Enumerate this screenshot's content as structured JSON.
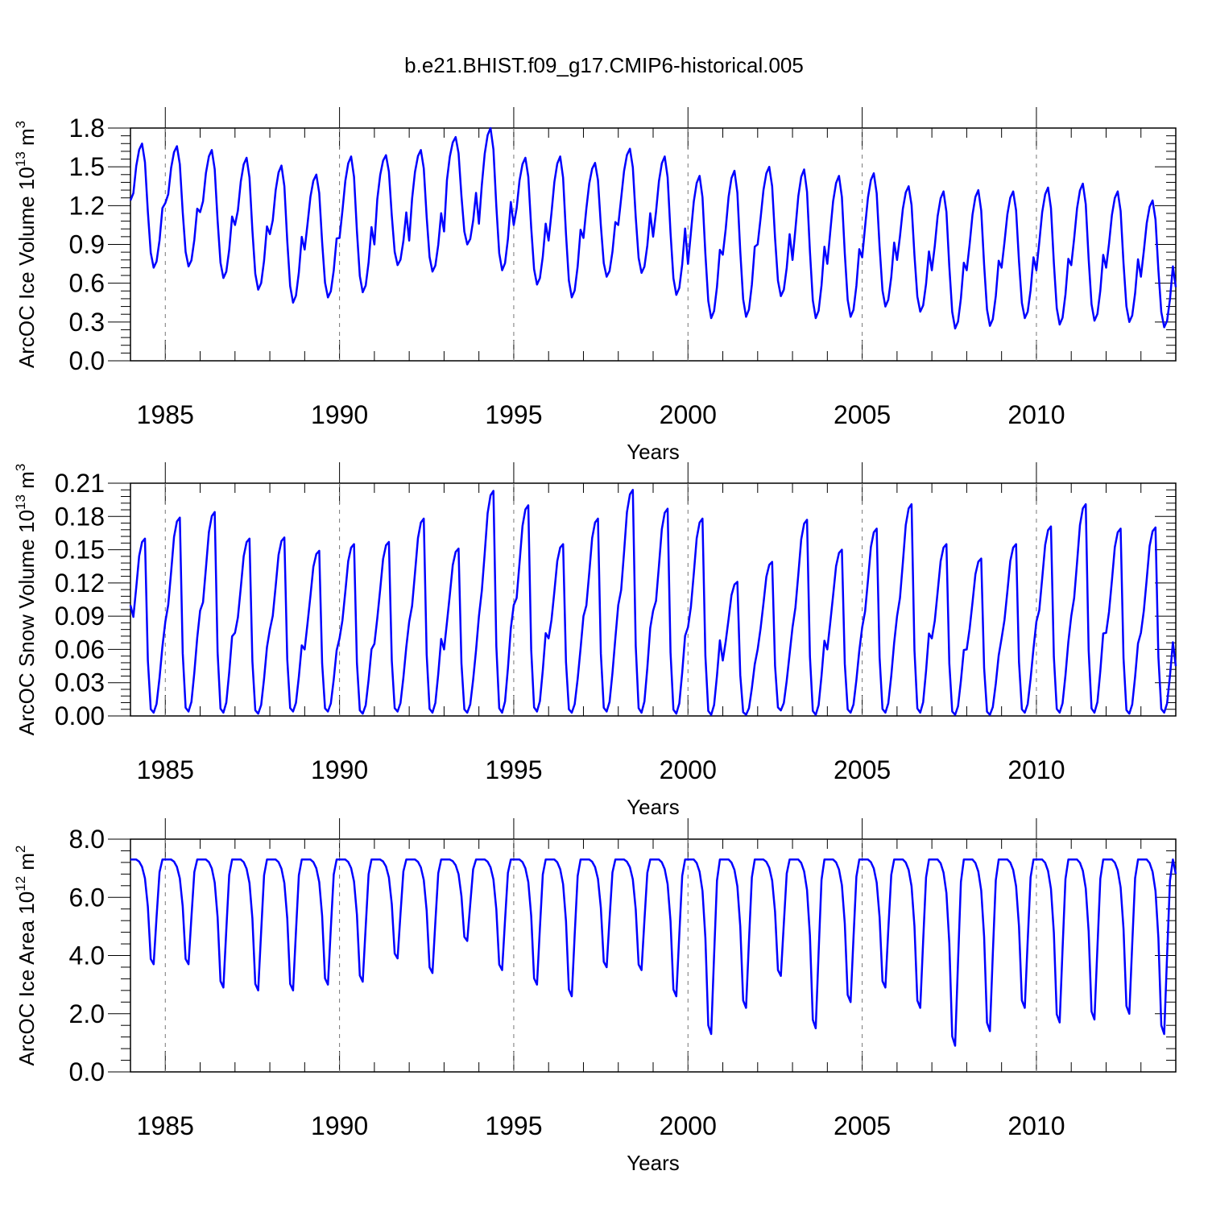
{
  "figure": {
    "title": "b.e21.BHIST.f09_g17.CMIP6-historical.005",
    "line_color": "#0000ff"
  },
  "chart_data": [
    {
      "type": "line",
      "ylabel_main": "ArcOC Ice Volume 10",
      "ylabel_exp": "13",
      "ylabel_unit": " m",
      "ylabel_unit_exp": "3",
      "xlabel": "Years",
      "xlim": [
        1984.0,
        2014.0
      ],
      "x_ticks": [
        1985,
        1990,
        1995,
        2000,
        2005,
        2010
      ],
      "ylim": [
        0.0,
        1.8
      ],
      "y_ticks": [
        "0.0",
        "0.3",
        "0.6",
        "0.9",
        "1.2",
        "1.5",
        "1.8"
      ],
      "grid": "vertical dashed at major x ticks",
      "series": [
        {
          "start_year": 1984,
          "annual_max": [
            1.68,
            1.66,
            1.63,
            1.57,
            1.51,
            1.44,
            1.58,
            1.59,
            1.63,
            1.73,
            1.8,
            1.57,
            1.58,
            1.53,
            1.64,
            1.58,
            1.43,
            1.47,
            1.5,
            1.48,
            1.43,
            1.45,
            1.35,
            1.31,
            1.32,
            1.31,
            1.34,
            1.37,
            1.31,
            1.24
          ],
          "annual_min": [
            0.72,
            0.73,
            0.64,
            0.55,
            0.45,
            0.49,
            0.53,
            0.74,
            0.69,
            0.9,
            0.7,
            0.59,
            0.49,
            0.65,
            0.68,
            0.51,
            0.33,
            0.34,
            0.5,
            0.33,
            0.34,
            0.42,
            0.38,
            0.25,
            0.27,
            0.33,
            0.28,
            0.31,
            0.3,
            0.26
          ],
          "jan_values": [
            1.24,
            1.22,
            1.15,
            1.05,
            0.98,
            0.86,
            0.95,
            0.9,
            0.93,
            1.0,
            1.06,
            1.05,
            0.93,
            0.95,
            1.05,
            0.96,
            0.75,
            0.82,
            0.9,
            0.78,
            0.75,
            0.8,
            0.78,
            0.7,
            0.7,
            0.72,
            0.7,
            0.74,
            0.72,
            0.65
          ],
          "end_value": 0.57
        }
      ]
    },
    {
      "type": "line",
      "ylabel_main": "ArcOC Snow Volume 10",
      "ylabel_exp": "13",
      "ylabel_unit": " m",
      "ylabel_unit_exp": "3",
      "xlabel": "Years",
      "xlim": [
        1984.0,
        2014.0
      ],
      "x_ticks": [
        1985,
        1990,
        1995,
        2000,
        2005,
        2010
      ],
      "ylim": [
        0.0,
        0.21
      ],
      "y_ticks": [
        "0.00",
        "0.03",
        "0.06",
        "0.09",
        "0.12",
        "0.15",
        "0.18",
        "0.21"
      ],
      "grid": "vertical dashed at major x ticks",
      "series": [
        {
          "start_year": 1984,
          "annual_max": [
            0.16,
            0.179,
            0.184,
            0.16,
            0.161,
            0.149,
            0.155,
            0.157,
            0.178,
            0.151,
            0.203,
            0.19,
            0.155,
            0.178,
            0.204,
            0.187,
            0.178,
            0.121,
            0.139,
            0.177,
            0.15,
            0.169,
            0.191,
            0.155,
            0.142,
            0.155,
            0.171,
            0.191,
            0.169,
            0.17
          ],
          "annual_min": [
            0.003,
            0.004,
            0.003,
            0.002,
            0.004,
            0.004,
            0.002,
            0.004,
            0.003,
            0.003,
            0.003,
            0.004,
            0.003,
            0.004,
            0.003,
            0.002,
            0.001,
            0.001,
            0.005,
            0.001,
            0.003,
            0.003,
            0.003,
            0.001,
            0.001,
            0.003,
            0.003,
            0.003,
            0.002,
            0.003
          ],
          "jan_values": [
            0.1,
            0.085,
            0.095,
            0.075,
            0.078,
            0.06,
            0.07,
            0.065,
            0.085,
            0.06,
            0.09,
            0.1,
            0.07,
            0.09,
            0.1,
            0.095,
            0.08,
            0.05,
            0.06,
            0.08,
            0.06,
            0.08,
            0.09,
            0.07,
            0.06,
            0.07,
            0.085,
            0.09,
            0.075,
            0.075
          ],
          "end_value": 0.045
        }
      ]
    },
    {
      "type": "line",
      "ylabel_main": "ArcOC Ice Area 10",
      "ylabel_exp": "12",
      "ylabel_unit": " m",
      "ylabel_unit_exp": "2",
      "xlabel": "Years",
      "xlim": [
        1984.0,
        2014.0
      ],
      "x_ticks": [
        1985,
        1990,
        1995,
        2000,
        2005,
        2010
      ],
      "ylim": [
        0.0,
        8.0
      ],
      "y_ticks": [
        "0.0",
        "2.0",
        "4.0",
        "6.0",
        "8.0"
      ],
      "grid": "vertical dashed at major x ticks",
      "series": [
        {
          "start_year": 1984,
          "annual_max": [
            7.3,
            7.3,
            7.3,
            7.3,
            7.3,
            7.3,
            7.3,
            7.3,
            7.3,
            7.3,
            7.3,
            7.3,
            7.3,
            7.3,
            7.3,
            7.3,
            7.3,
            7.3,
            7.3,
            7.3,
            7.3,
            7.3,
            7.3,
            7.3,
            7.3,
            7.3,
            7.3,
            7.3,
            7.3,
            7.3
          ],
          "annual_min": [
            3.7,
            3.7,
            2.9,
            2.8,
            2.8,
            3.0,
            3.1,
            3.9,
            3.4,
            4.5,
            3.5,
            3.0,
            2.6,
            3.6,
            3.5,
            2.6,
            1.3,
            2.2,
            3.3,
            1.5,
            2.4,
            2.9,
            2.2,
            0.9,
            1.4,
            2.2,
            1.7,
            1.8,
            2.0,
            1.3
          ],
          "jan_values": [
            7.3,
            7.3,
            7.3,
            7.3,
            7.3,
            7.3,
            7.3,
            7.3,
            7.3,
            7.3,
            7.3,
            7.3,
            7.3,
            7.3,
            7.3,
            7.3,
            7.3,
            7.3,
            7.3,
            7.3,
            7.3,
            7.3,
            7.3,
            7.3,
            7.3,
            7.3,
            7.3,
            7.3,
            7.3,
            7.3
          ],
          "end_value": 6.8
        }
      ]
    }
  ]
}
